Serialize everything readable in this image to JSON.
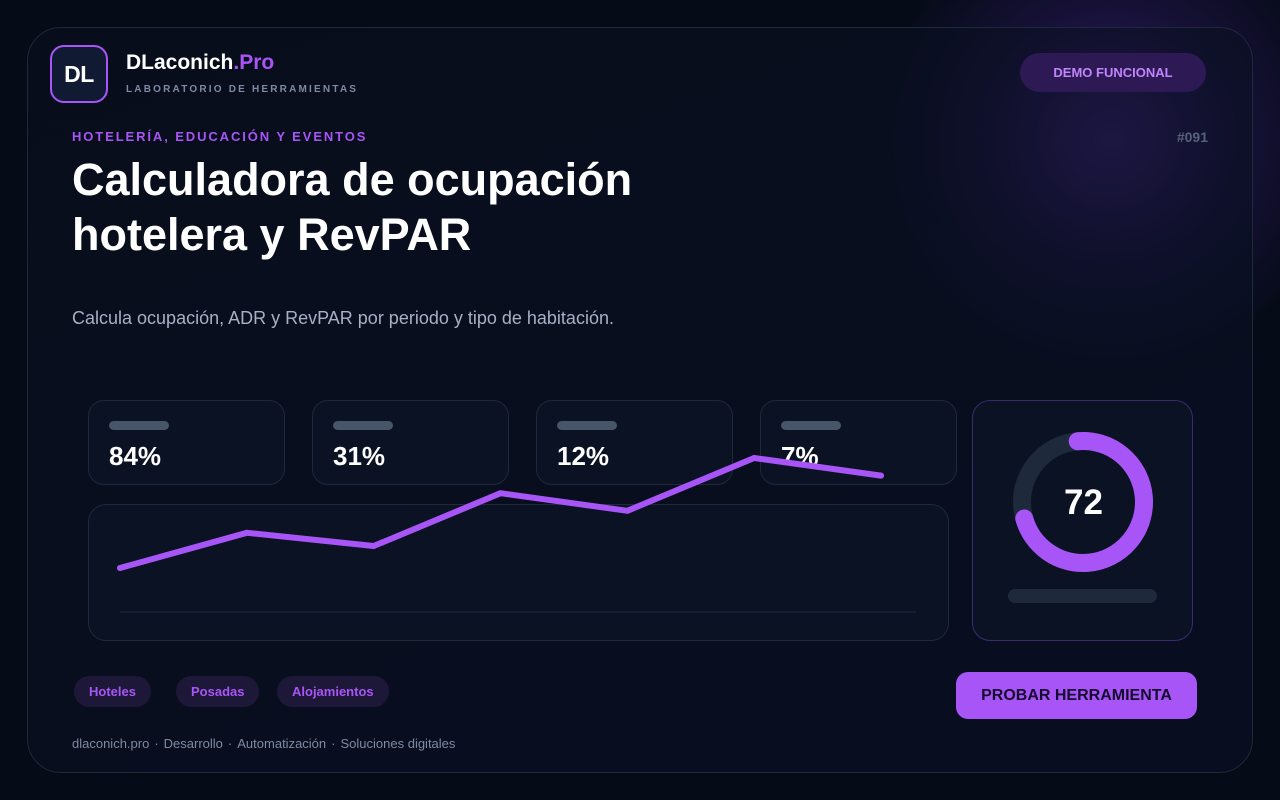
{
  "brand": {
    "logo_text": "DL",
    "name": "DLaconich",
    "name_accent": ".Pro",
    "tagline": "LABORATORIO DE HERRAMIENTAS"
  },
  "header": {
    "badge": "DEMO FUNCIONAL"
  },
  "tool": {
    "category": "HOTELERÍA, EDUCACIÓN Y EVENTOS",
    "number": "#091",
    "title": "Calculadora de ocupación hotelera y RevPAR",
    "description": "Calcula ocupación, ADR y RevPAR por periodo y tipo de habitación."
  },
  "metrics": [
    {
      "value": "84%"
    },
    {
      "value": "31%"
    },
    {
      "value": "12%"
    },
    {
      "value": "7%"
    }
  ],
  "chart_data": {
    "type": "line",
    "series": [
      {
        "values": [
          10,
          18,
          15,
          27,
          23,
          35,
          31
        ]
      }
    ],
    "ylim": [
      0,
      40
    ],
    "color": "#a855f7"
  },
  "score": {
    "value": "72",
    "fraction": 0.72,
    "color": "#a855f7",
    "track_color": "#1e293b"
  },
  "tags": [
    "Hoteles",
    "Posadas",
    "Alojamientos"
  ],
  "cta": {
    "label": "PROBAR HERRAMIENTA"
  },
  "footer": [
    "dlaconich.pro",
    "Desarrollo",
    "Automatización",
    "Soluciones digitales"
  ],
  "footer_separator": "·",
  "colors": {
    "accent": "#a855f7",
    "background": "#060b18"
  }
}
